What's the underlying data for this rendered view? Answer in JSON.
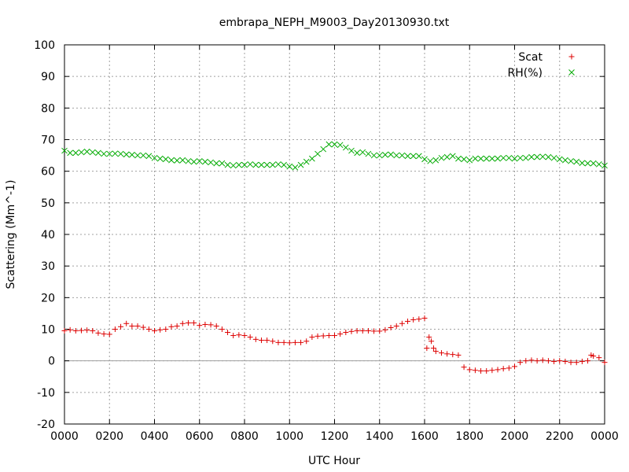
{
  "chart_data": {
    "type": "scatter",
    "title": "embrapa_NEPH_M9003_Day20130930.txt",
    "xlabel": "UTC Hour",
    "ylabel": "Scattering (Mm^-1)",
    "xlim": [
      0,
      24
    ],
    "ylim": [
      -20,
      100
    ],
    "grid": true,
    "legend_position": "top-right",
    "x_ticks": [
      0,
      2,
      4,
      6,
      8,
      10,
      12,
      14,
      16,
      18,
      20,
      22,
      24
    ],
    "x_tick_labels": [
      "0000",
      "0200",
      "0400",
      "0600",
      "0800",
      "1000",
      "1200",
      "1400",
      "1600",
      "1800",
      "2000",
      "2200",
      "0000"
    ],
    "y_ticks": [
      -20,
      -10,
      0,
      10,
      20,
      30,
      40,
      50,
      60,
      70,
      80,
      90,
      100
    ],
    "y_tick_labels": [
      "-20",
      "-10",
      "0",
      "10",
      "20",
      "30",
      "40",
      "50",
      "60",
      "70",
      "80",
      "90",
      "100"
    ],
    "zero_line": true,
    "series": [
      {
        "name": "Scat",
        "marker": "plus",
        "color": "#dd0000",
        "x": [
          0.0,
          0.25,
          0.5,
          0.75,
          1.0,
          1.25,
          1.5,
          1.75,
          2.0,
          2.25,
          2.5,
          2.75,
          3.0,
          3.25,
          3.5,
          3.75,
          4.0,
          4.25,
          4.5,
          4.75,
          5.0,
          5.25,
          5.5,
          5.75,
          6.0,
          6.25,
          6.5,
          6.75,
          7.0,
          7.25,
          7.5,
          7.75,
          8.0,
          8.25,
          8.5,
          8.75,
          9.0,
          9.25,
          9.5,
          9.75,
          10.0,
          10.25,
          10.5,
          10.75,
          11.0,
          11.25,
          11.5,
          11.75,
          12.0,
          12.25,
          12.5,
          12.75,
          13.0,
          13.25,
          13.5,
          13.75,
          14.0,
          14.25,
          14.5,
          14.75,
          15.0,
          15.25,
          15.5,
          15.75,
          16.0,
          16.1,
          16.2,
          16.3,
          16.4,
          16.5,
          16.75,
          17.0,
          17.25,
          17.5,
          17.75,
          18.0,
          18.25,
          18.5,
          18.75,
          19.0,
          19.25,
          19.5,
          19.75,
          20.0,
          20.25,
          20.5,
          20.75,
          21.0,
          21.25,
          21.5,
          21.75,
          22.0,
          22.25,
          22.5,
          22.75,
          23.0,
          23.25,
          23.4,
          23.5,
          23.75,
          24.0
        ],
        "y": [
          9.5,
          9.8,
          9.5,
          9.6,
          9.7,
          9.5,
          8.8,
          8.5,
          8.4,
          10.0,
          10.8,
          11.8,
          11.0,
          11.0,
          10.6,
          10.0,
          9.5,
          9.8,
          10.0,
          10.8,
          11.0,
          11.8,
          12.0,
          12.0,
          11.2,
          11.5,
          11.4,
          11.0,
          10.0,
          9.0,
          8.0,
          8.2,
          8.0,
          7.5,
          6.8,
          6.5,
          6.5,
          6.2,
          5.8,
          5.8,
          5.7,
          5.8,
          5.8,
          6.2,
          7.5,
          7.8,
          7.9,
          8.0,
          8.0,
          8.5,
          9.0,
          9.3,
          9.5,
          9.5,
          9.5,
          9.4,
          9.4,
          9.8,
          10.5,
          11.0,
          11.8,
          12.5,
          13.0,
          13.2,
          13.5,
          4.0,
          7.5,
          6.2,
          4.0,
          3.0,
          2.5,
          2.2,
          2.0,
          1.8,
          -2.0,
          -2.8,
          -3.0,
          -3.2,
          -3.2,
          -3.0,
          -2.8,
          -2.5,
          -2.3,
          -1.8,
          -0.5,
          0.0,
          0.2,
          0.0,
          0.2,
          0.0,
          -0.2,
          0.0,
          -0.2,
          -0.5,
          -0.5,
          -0.2,
          0.0,
          1.8,
          1.5,
          1.0,
          -0.5
        ]
      },
      {
        "name": "RH(%)",
        "marker": "cross",
        "color": "#00aa00",
        "x": [
          0.0,
          0.25,
          0.5,
          0.75,
          1.0,
          1.25,
          1.5,
          1.75,
          2.0,
          2.25,
          2.5,
          2.75,
          3.0,
          3.25,
          3.5,
          3.75,
          4.0,
          4.25,
          4.5,
          4.75,
          5.0,
          5.25,
          5.5,
          5.75,
          6.0,
          6.25,
          6.5,
          6.75,
          7.0,
          7.25,
          7.5,
          7.75,
          8.0,
          8.25,
          8.5,
          8.75,
          9.0,
          9.25,
          9.5,
          9.75,
          10.0,
          10.25,
          10.5,
          10.75,
          11.0,
          11.25,
          11.5,
          11.75,
          12.0,
          12.25,
          12.5,
          12.75,
          13.0,
          13.25,
          13.5,
          13.75,
          14.0,
          14.25,
          14.5,
          14.75,
          15.0,
          15.25,
          15.5,
          15.75,
          16.0,
          16.25,
          16.5,
          16.75,
          17.0,
          17.25,
          17.5,
          17.75,
          18.0,
          18.25,
          18.5,
          18.75,
          19.0,
          19.25,
          19.5,
          19.75,
          20.0,
          20.25,
          20.5,
          20.75,
          21.0,
          21.25,
          21.5,
          21.75,
          22.0,
          22.25,
          22.5,
          22.75,
          23.0,
          23.25,
          23.5,
          23.75,
          24.0
        ],
        "y": [
          66.5,
          65.8,
          65.8,
          66.0,
          66.2,
          66.0,
          65.8,
          65.5,
          65.5,
          65.6,
          65.5,
          65.3,
          65.2,
          65.0,
          65.0,
          64.8,
          64.2,
          64.0,
          63.8,
          63.5,
          63.4,
          63.5,
          63.2,
          63.0,
          63.2,
          63.0,
          62.8,
          62.5,
          62.5,
          62.0,
          61.8,
          62.0,
          62.0,
          62.2,
          62.0,
          62.0,
          62.0,
          62.0,
          62.2,
          62.0,
          61.5,
          61.2,
          62.0,
          63.0,
          64.0,
          65.5,
          67.0,
          68.5,
          68.5,
          68.3,
          67.5,
          66.5,
          65.8,
          66.0,
          65.5,
          65.0,
          65.0,
          65.2,
          65.3,
          65.0,
          65.0,
          64.8,
          64.8,
          64.8,
          63.8,
          63.2,
          63.5,
          64.2,
          64.5,
          64.8,
          64.0,
          63.8,
          63.5,
          64.0,
          64.0,
          64.0,
          64.0,
          64.0,
          64.2,
          64.2,
          64.0,
          64.2,
          64.2,
          64.5,
          64.5,
          64.6,
          64.5,
          64.2,
          63.8,
          63.5,
          63.2,
          63.0,
          62.6,
          62.5,
          62.5,
          62.2,
          61.8
        ]
      }
    ]
  }
}
